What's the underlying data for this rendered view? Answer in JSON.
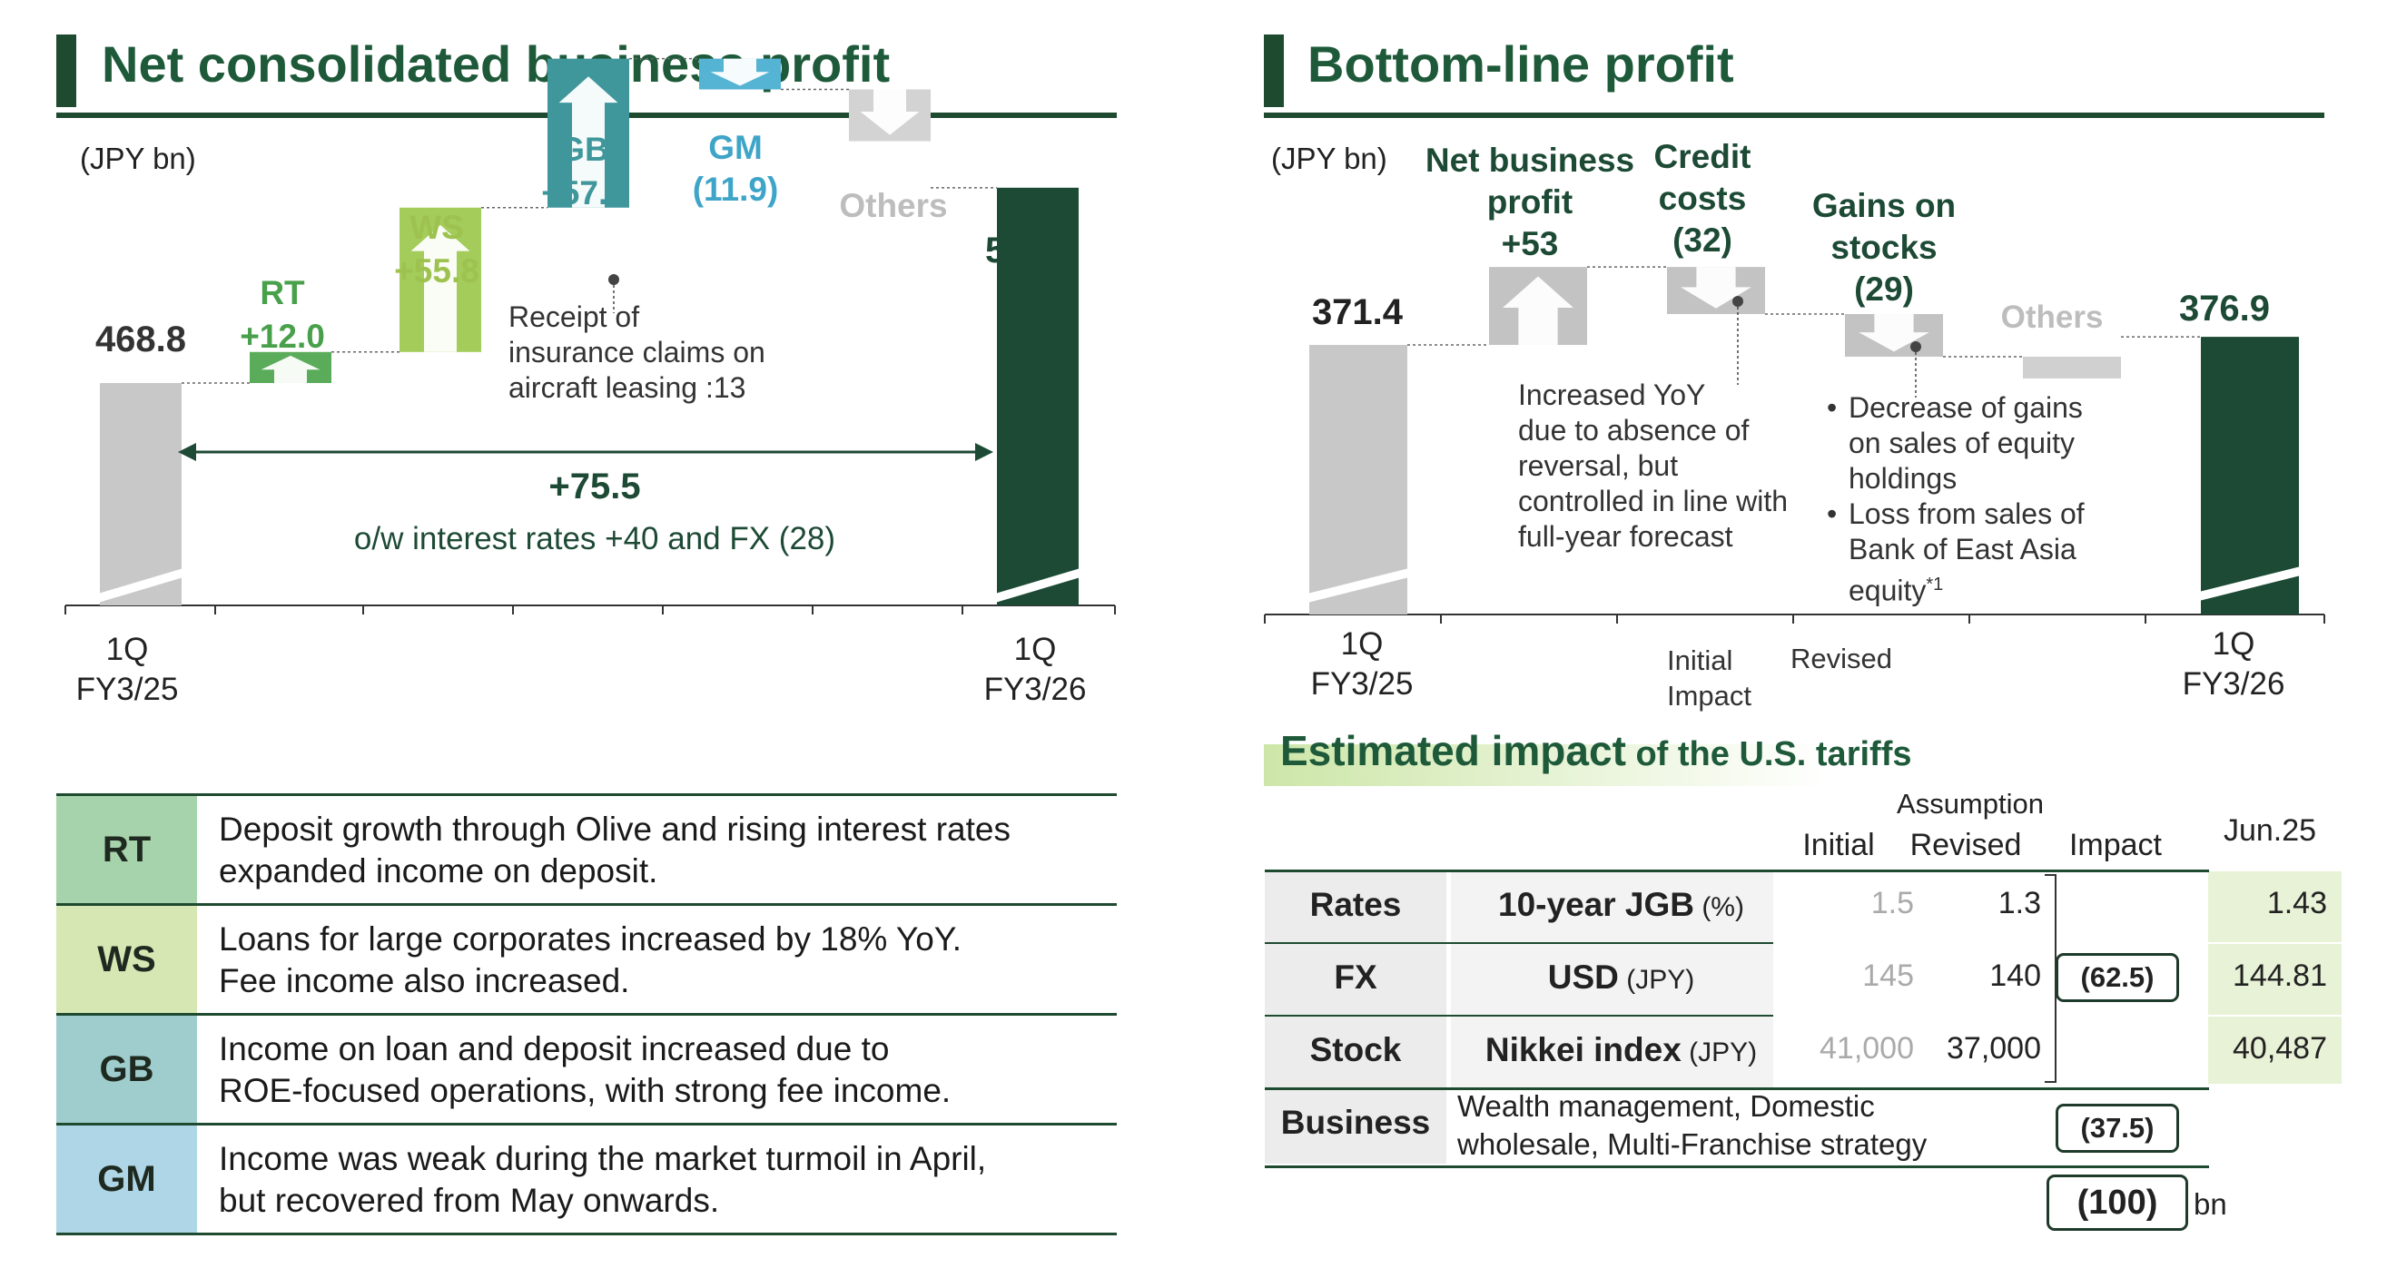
{
  "left_panel": {
    "title": "Net consolidated business profit",
    "unit": "(JPY bn)",
    "total_change": "+75.5",
    "total_change_note": "o/w interest rates +40 and FX (28)",
    "annotation": [
      "Receipt of",
      "insurance claims on",
      "aircraft leasing :13"
    ]
  },
  "right_panel": {
    "title": "Bottom-line profit",
    "unit": "(JPY bn)",
    "annotation_credit": [
      "Increased YoY",
      "due to absence of",
      "reversal, but",
      "controlled in line with",
      "full-year forecast"
    ],
    "annotation_stocks": [
      {
        "bullet": "•",
        "lines": [
          "Decrease of gains",
          "on sales of equity",
          "holdings"
        ]
      },
      {
        "bullet": "•",
        "lines": [
          "Loss from sales of",
          "Bank of East Asia",
          "equity"
        ],
        "sup": "*1"
      }
    ],
    "axis_mid_labels": [
      "Initial",
      "Impact",
      "Revised"
    ]
  },
  "chart_data": [
    {
      "type": "waterfall",
      "title": "Net consolidated business profit",
      "unit": "(JPY bn)",
      "categories": [
        "1Q FY3/25",
        "RT",
        "WS",
        "GB",
        "GM",
        "Others",
        "1Q FY3/26"
      ],
      "values": [
        468.8,
        12.0,
        55.8,
        57.6,
        -11.9,
        null,
        544.3
      ],
      "labels": [
        "468.8",
        "+12.0",
        "+55.8",
        "+57.6",
        "(11.9)",
        "Others",
        "544.3"
      ],
      "x_tick_labels": [
        [
          "1Q",
          "FY3/25"
        ],
        [
          "1Q",
          "FY3/26"
        ]
      ],
      "colors": {
        "start": "#c8c8c8",
        "RT": "#5aac5a",
        "WS": "#a3cc5a",
        "GB": "#3f979c",
        "GM": "#55b3d4",
        "Others": "#d3d3d3",
        "end": "#1d4a35"
      }
    },
    {
      "type": "waterfall",
      "title": "Bottom-line profit",
      "unit": "(JPY bn)",
      "categories": [
        "1Q FY3/25",
        "Net business profit",
        "Credit costs",
        "Gains on stocks",
        "Others",
        "1Q FY3/26"
      ],
      "values": [
        371.4,
        53,
        -32,
        -29,
        null,
        376.9
      ],
      "labels": [
        "371.4",
        "+53",
        "(32)",
        "(29)",
        "Others",
        "376.9"
      ],
      "category_label_lines": [
        [
          "Net business",
          "profit",
          "+53"
        ],
        [
          "Credit",
          "costs",
          "(32)"
        ],
        [
          "Gains on",
          "stocks",
          "(29)"
        ]
      ],
      "x_tick_labels": [
        [
          "1Q",
          "FY3/25"
        ],
        [
          "1Q",
          "FY3/26"
        ]
      ],
      "colors": {
        "start": "#c8c8c8",
        "step": "#c3c3c3",
        "end": "#1d4a35"
      }
    }
  ],
  "segments": [
    {
      "code": "RT",
      "color": "#a6d3ab",
      "desc": [
        "Deposit growth through Olive and rising interest rates",
        "expanded income on deposit."
      ]
    },
    {
      "code": "WS",
      "color": "#d6e7b3",
      "desc": [
        "Loans for large corporates increased by 18% YoY.",
        "Fee income also increased."
      ]
    },
    {
      "code": "GB",
      "color": "#9fcdcd",
      "desc": [
        "Income on loan and deposit increased due to",
        "ROE-focused operations, with strong fee income."
      ]
    },
    {
      "code": "GM",
      "color": "#aed6e6",
      "desc": [
        "Income was weak during the market turmoil in April,",
        "but recovered from May onwards."
      ]
    }
  ],
  "tariffs": {
    "title_bold": "Estimated impact",
    "title_rest": " of the U.S. tariffs",
    "header": {
      "assumption": "Assumption",
      "initial": "Initial",
      "revised": "Revised",
      "impact": "Impact",
      "date": "Jun.25"
    },
    "rows": [
      {
        "category": "Rates",
        "indicator": "10-year JGB",
        "unit": " (%)",
        "initial": "1.5",
        "revised": "1.3",
        "actual": "1.43"
      },
      {
        "category": "FX",
        "indicator": "USD",
        "unit": " (JPY)",
        "initial": "145",
        "revised": "140",
        "actual": "144.81"
      },
      {
        "category": "Stock",
        "indicator": "Nikkei index",
        "unit": " (JPY)",
        "initial": "41,000",
        "revised": "37,000",
        "actual": "40,487"
      }
    ],
    "market_impact": "(62.5)",
    "business": {
      "category": "Business",
      "desc": [
        "Wealth management, Domestic",
        "wholesale, Multi-Franchise strategy"
      ],
      "impact": "(37.5)"
    },
    "total": "(100)",
    "total_unit": "bn"
  }
}
